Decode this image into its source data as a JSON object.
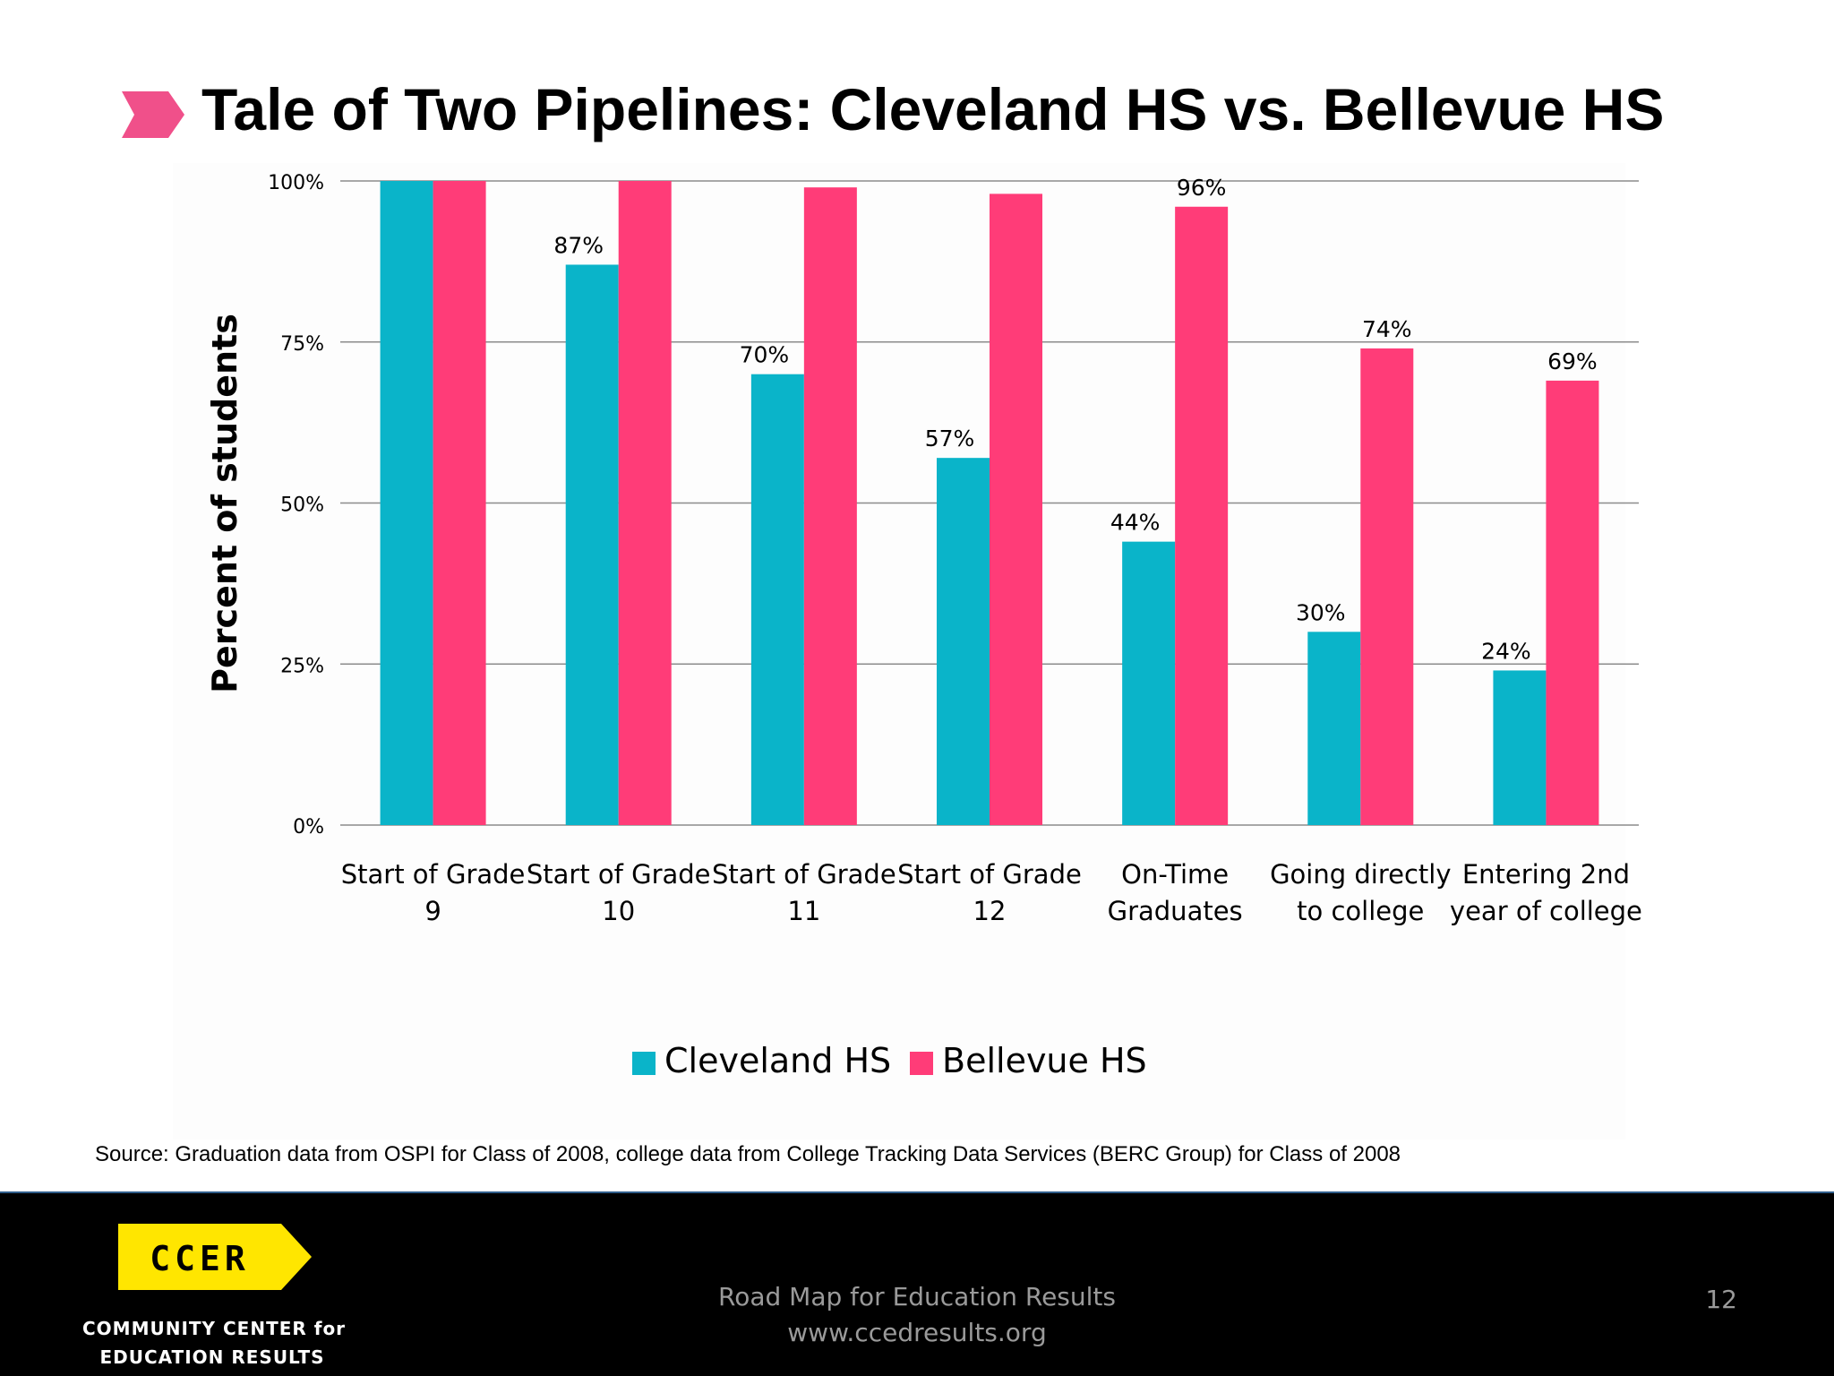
{
  "slide": {
    "title": "Tale of Two Pipelines: Cleveland HS vs. Bellevue HS",
    "source": "Source: Graduation data from OSPI for Class of 2008, college data from College Tracking Data Services (BERC Group) for Class of 2008",
    "accent_color": "#f0508a",
    "icon": "chevron-right-icon"
  },
  "footer": {
    "logo_badge": "CCER",
    "logo_line1": "COMMUNITY CENTER for",
    "logo_line2": "EDUCATION RESULTS",
    "center_line1": "Road Map for Education Results",
    "center_line2": "www.ccedresults.org",
    "page_number": "12",
    "background_color": "#000000",
    "logo_color": "#ffe600"
  },
  "chart_data": {
    "type": "bar",
    "title": "",
    "ylabel": "Percent of students",
    "xlabel": "",
    "ylim": [
      0,
      100
    ],
    "yticks": [
      "0%",
      "25%",
      "50%",
      "75%",
      "100%"
    ],
    "grid": true,
    "legend_position": "bottom",
    "categories": [
      [
        "Start of Grade",
        "9"
      ],
      [
        "Start of Grade",
        "10"
      ],
      [
        "Start of Grade",
        "11"
      ],
      [
        "Start of Grade",
        "12"
      ],
      [
        "On-Time",
        "Graduates"
      ],
      [
        "Going directly",
        "to college"
      ],
      [
        "Entering 2nd",
        "year of college"
      ]
    ],
    "series": [
      {
        "name": "Cleveland HS",
        "color": "#0ab4c9",
        "values": [
          100,
          87,
          70,
          57,
          44,
          30,
          24
        ],
        "labels": [
          "",
          "87%",
          "70%",
          "57%",
          "44%",
          "30%",
          "24%"
        ]
      },
      {
        "name": "Bellevue HS",
        "color": "#ff3c78",
        "values": [
          100,
          100,
          99,
          98,
          96,
          74,
          69
        ],
        "labels": [
          "",
          "",
          "",
          "",
          "96%",
          "74%",
          "69%"
        ]
      }
    ]
  }
}
